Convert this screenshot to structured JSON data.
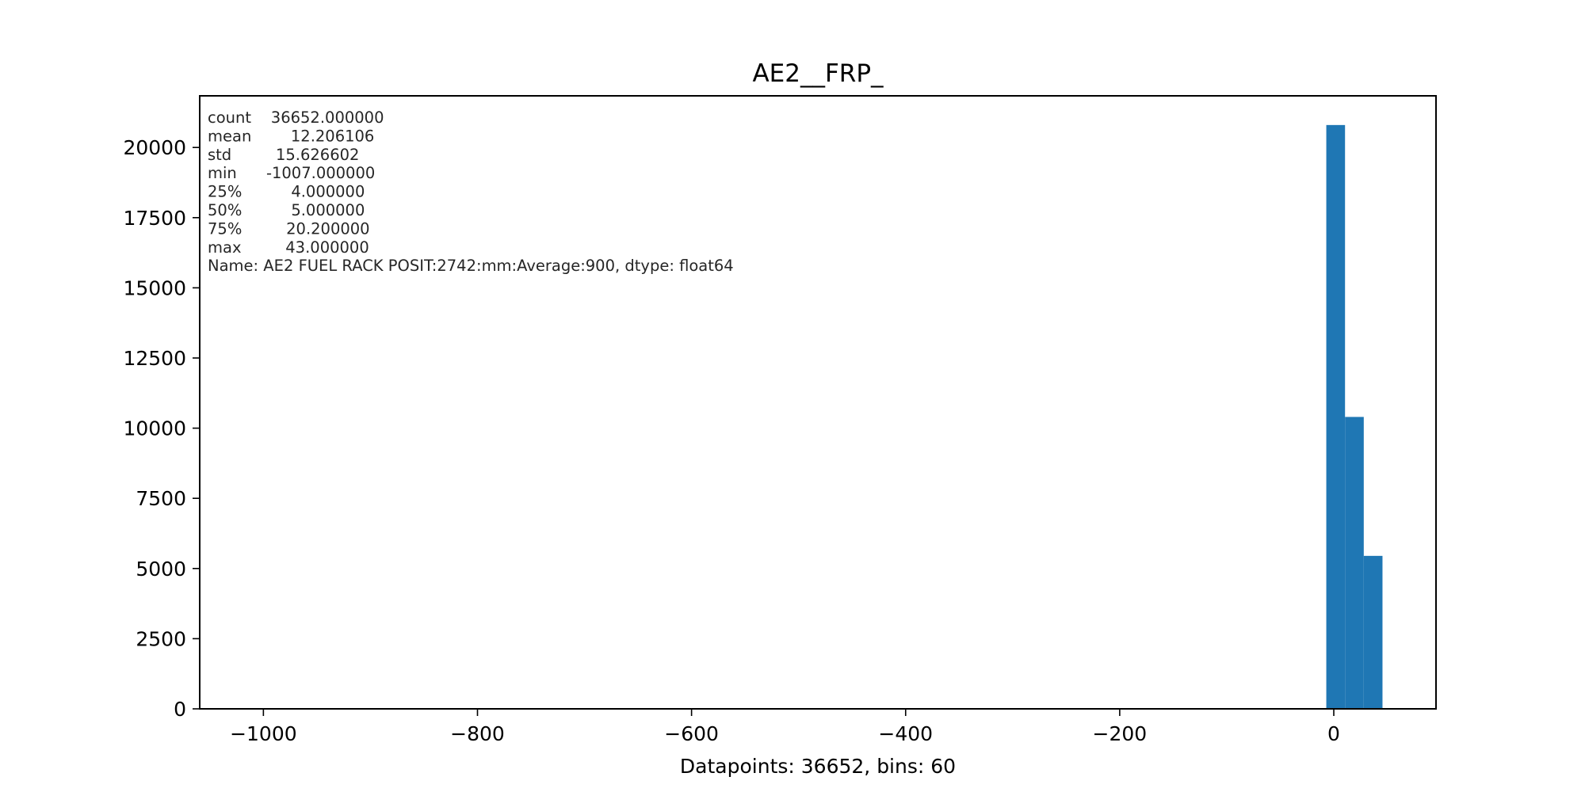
{
  "chart_data": {
    "type": "bar",
    "title": "AE2__FRP_",
    "xlabel": "Datapoints: 36652, bins: 60",
    "ylabel": "",
    "xlim": [
      -1059.5,
      95.5
    ],
    "ylim": [
      0,
      21840
    ],
    "grid": false,
    "bin_width": 17.5,
    "bins": [
      {
        "x0": -7,
        "x1": 10.5,
        "count": 20800
      },
      {
        "x0": 10.5,
        "x1": 28,
        "count": 10400
      },
      {
        "x0": 28,
        "x1": 45.5,
        "count": 5450
      }
    ],
    "x_ticks": [
      -1000,
      -800,
      -600,
      -400,
      -200,
      0
    ],
    "x_tick_labels": [
      "−1000",
      "−800",
      "−600",
      "−400",
      "−200",
      "0"
    ],
    "y_ticks": [
      0,
      2500,
      5000,
      7500,
      10000,
      12500,
      15000,
      17500,
      20000
    ],
    "y_tick_labels": [
      "0",
      "2500",
      "5000",
      "7500",
      "10000",
      "12500",
      "15000",
      "17500",
      "20000"
    ],
    "bar_color": "#1f77b4",
    "stats_lines": [
      "count    36652.000000",
      "mean        12.206106",
      "std         15.626602",
      "min      -1007.000000",
      "25%          4.000000",
      "50%          5.000000",
      "75%         20.200000",
      "max         43.000000",
      "Name: AE2 FUEL RACK POSIT:2742:mm:Average:900, dtype: float64"
    ]
  }
}
